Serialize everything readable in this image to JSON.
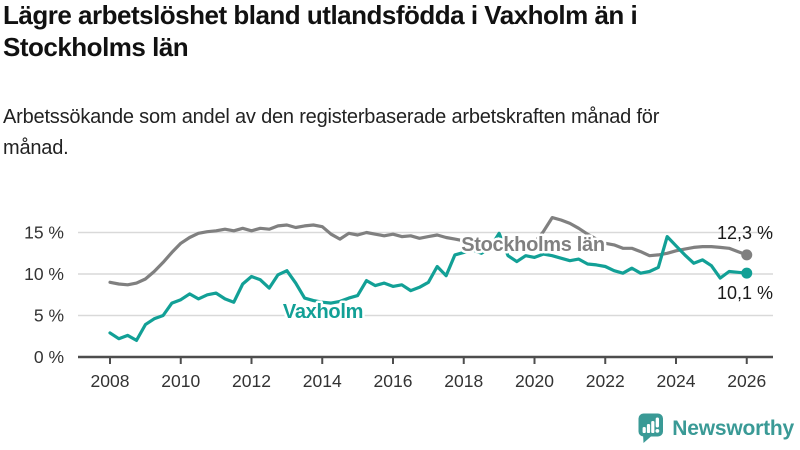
{
  "title": "Lägre arbetslöshet bland utlandsfödda i Vaxholm än i Stockholms län",
  "subtitle": "Arbetssökande som andel av den registerbaserade arbetskraften månad för månad.",
  "footer": {
    "brand": "Newsworthy",
    "logo_icon": "speech-bubble-bar-chart"
  },
  "colors": {
    "stockholm_gray": "#808080",
    "vaxholm_teal": "#12a096",
    "grid": "#d9d9d9",
    "axis": "#4d4d4d",
    "tick_text": "#333333",
    "end_label_text": "#1a1a1a",
    "brand_teal": "#3a9a96"
  },
  "chart_data": {
    "type": "line",
    "title": "",
    "xlabel": "",
    "ylabel": "",
    "unit": "%",
    "grid": "horizontal",
    "x_start": 2008.0,
    "x_step": 0.25,
    "x_ticks": [
      2008,
      2010,
      2012,
      2014,
      2016,
      2018,
      2020,
      2022,
      2024,
      2026
    ],
    "y_ticks": [
      0,
      5,
      10,
      15
    ],
    "y_tick_labels": [
      "0 %",
      "5 %",
      "10 %",
      "15 %"
    ],
    "ylim": [
      0,
      17.5
    ],
    "legend_position": "inline-labels",
    "series": [
      {
        "name": "Stockholms län",
        "color": "#808080",
        "end_label": "12,3 %",
        "end_value": 12.3,
        "values": [
          9.0,
          8.8,
          8.7,
          8.9,
          9.4,
          10.3,
          11.4,
          12.6,
          13.7,
          14.4,
          14.9,
          15.1,
          15.2,
          15.4,
          15.2,
          15.5,
          15.2,
          15.5,
          15.4,
          15.8,
          15.9,
          15.6,
          15.8,
          15.9,
          15.7,
          14.8,
          14.2,
          14.9,
          14.7,
          15.0,
          14.8,
          14.6,
          14.8,
          14.5,
          14.6,
          14.3,
          14.5,
          14.7,
          14.4,
          14.2,
          14.0,
          13.9,
          13.8,
          13.9,
          13.8,
          13.6,
          13.5,
          13.6,
          13.8,
          15.1,
          16.8,
          16.5,
          16.1,
          15.5,
          14.8,
          14.2,
          13.7,
          13.5,
          13.1,
          13.1,
          12.7,
          12.2,
          12.3,
          12.5,
          12.8,
          13.0,
          13.2,
          13.3,
          13.3,
          13.2,
          13.1,
          12.7,
          12.3
        ]
      },
      {
        "name": "Vaxholm",
        "color": "#12a096",
        "end_label": "10,1 %",
        "end_value": 10.1,
        "values": [
          2.9,
          2.2,
          2.6,
          2.0,
          3.9,
          4.6,
          5.0,
          6.5,
          6.9,
          7.6,
          7.0,
          7.5,
          7.7,
          7.0,
          6.6,
          8.8,
          9.7,
          9.3,
          8.3,
          9.9,
          10.4,
          8.9,
          7.1,
          6.8,
          6.6,
          6.5,
          6.7,
          7.1,
          7.4,
          9.2,
          8.6,
          8.9,
          8.5,
          8.7,
          8.0,
          8.4,
          9.0,
          10.9,
          9.8,
          12.3,
          12.6,
          12.9,
          12.5,
          13.2,
          14.9,
          12.2,
          11.5,
          12.2,
          12.0,
          12.4,
          12.2,
          11.9,
          11.6,
          11.8,
          11.2,
          11.1,
          10.9,
          10.4,
          10.1,
          10.7,
          10.1,
          10.3,
          10.8,
          14.5,
          13.4,
          12.3,
          11.3,
          11.7,
          11.0,
          9.5,
          10.3,
          10.2,
          10.1
        ]
      }
    ]
  }
}
